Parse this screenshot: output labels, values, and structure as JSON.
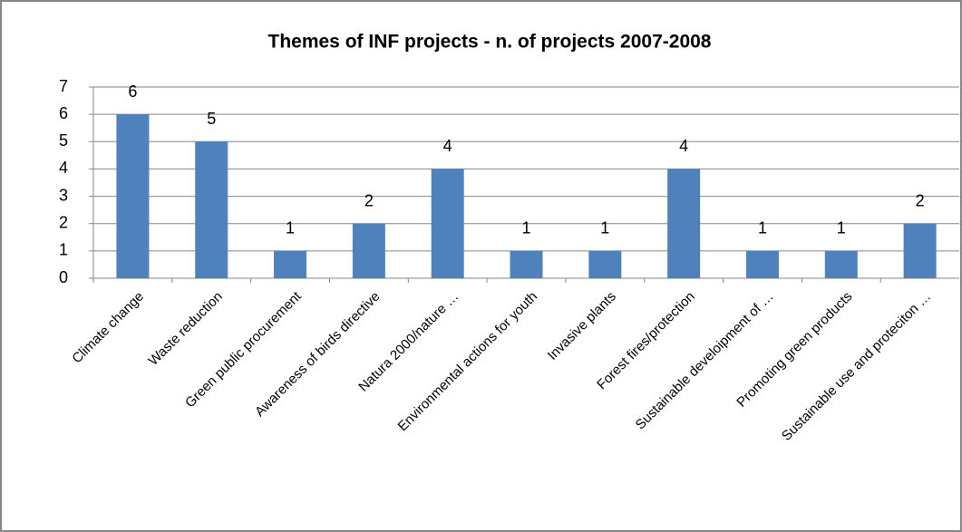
{
  "chart_data": {
    "type": "bar",
    "title": "Themes of INF projects - n. of projects 2007-2008",
    "categories": [
      "Climate change",
      "Waste reduction",
      "Green public procurement",
      "Awareness of birds directive",
      "Natura 2000/nature …",
      "Environmental actions for youth",
      "Invasive plants",
      "Forest fires/protection",
      "Sustainable develoipment of …",
      "Promoting green products",
      "Sustainable use and proteciton …"
    ],
    "values": [
      6,
      5,
      1,
      2,
      4,
      1,
      1,
      4,
      1,
      1,
      2
    ],
    "color": "#4f81bd",
    "ylim": [
      0,
      7
    ],
    "yticks": [
      0,
      1,
      2,
      3,
      4,
      5,
      6,
      7
    ],
    "grid": true
  }
}
